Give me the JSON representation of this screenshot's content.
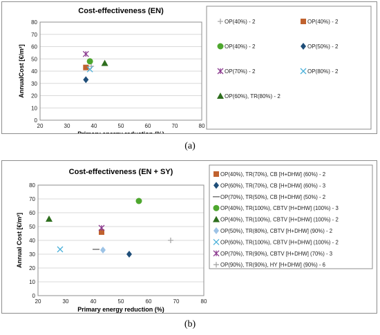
{
  "captions": {
    "a": "(a)",
    "b": "(b)"
  },
  "colors": {
    "orange": "#c0504d",
    "brown": "#c0622f",
    "green": "#4ea72e",
    "dark_green": "#2e6e1e",
    "navy": "#1f4e79",
    "purple": "#8b3a8f",
    "cyan": "#4ab0d9",
    "grey": "#a6a6a6",
    "light_blue": "#9dc3e6"
  },
  "chart_data": [
    {
      "type": "scatter",
      "title": "Cost-effectiveness (EN)",
      "xlabel": "Primary energy reduction (%)",
      "ylabel": "AnnualCost [€/m²]",
      "xlim": [
        20,
        80
      ],
      "ylim": [
        0,
        80
      ],
      "xticks": [
        20,
        30,
        40,
        50,
        60,
        70,
        80
      ],
      "yticks": [
        0,
        10,
        20,
        30,
        40,
        50,
        60,
        70,
        80
      ],
      "grid": "horizontal",
      "legend_position": "right",
      "series": [
        {
          "name": "OP(40%) - 2",
          "marker": "plus",
          "color": "#a6a6a6",
          "points": [
            [
              39,
              44
            ]
          ]
        },
        {
          "name": "OP(40%) - 2",
          "marker": "square",
          "color": "#c0622f",
          "points": [
            [
              37,
              43
            ]
          ]
        },
        {
          "name": "OP(40%) - 2",
          "marker": "circle",
          "color": "#4ea72e",
          "points": [
            [
              38.5,
              48
            ]
          ]
        },
        {
          "name": "OP(50%) - 2",
          "marker": "diamond",
          "color": "#1f4e79",
          "points": [
            [
              37,
              33
            ]
          ]
        },
        {
          "name": "OP(70%) - 2",
          "marker": "star",
          "color": "#8b3a8f",
          "points": [
            [
              37,
              54
            ]
          ]
        },
        {
          "name": "OP(80%) - 2",
          "marker": "x",
          "color": "#4ab0d9",
          "points": [
            [
              38.5,
              41.5
            ]
          ]
        },
        {
          "name": "OP(60%), TR(80%) - 2",
          "marker": "triangle",
          "color": "#2e6e1e",
          "points": [
            [
              44,
              46.5
            ]
          ]
        }
      ]
    },
    {
      "type": "scatter",
      "title": "Cost-effectiveness  (EN + SY)",
      "xlabel": "Primary energy reduction (%)",
      "ylabel": "Annual Cost [€/m²]",
      "xlim": [
        20,
        80
      ],
      "ylim": [
        0,
        80
      ],
      "xticks": [
        20,
        30,
        40,
        50,
        60,
        70,
        80
      ],
      "yticks": [
        0,
        10,
        20,
        30,
        40,
        50,
        60,
        70,
        80
      ],
      "grid": "horizontal",
      "legend_position": "right",
      "series": [
        {
          "name": "OP(40%), TR(70%), CB [H+DHW] (60%) - 2",
          "marker": "square",
          "color": "#c0622f",
          "points": [
            [
              43,
              46
            ]
          ]
        },
        {
          "name": "OP(60%), TR(70%), CB [H+DHW] (60%) - 3",
          "marker": "diamond",
          "color": "#1f4e79",
          "points": [
            [
              53,
              30
            ]
          ]
        },
        {
          "name": "OP(70%), TR(50%), CB [H+DHW] (50%) - 2",
          "marker": "dash",
          "color": "#7f7f7f",
          "points": [
            [
              41,
              33.5
            ]
          ]
        },
        {
          "name": "OP(40%), TR(100%), CBTV [H+DHW] (100%) - 3",
          "marker": "circle",
          "color": "#4ea72e",
          "points": [
            [
              56.5,
              68.5
            ]
          ]
        },
        {
          "name": "OP(40%), TR(100%), CBTV [H+DHW] (100%) - 2",
          "marker": "triangle",
          "color": "#2e6e1e",
          "points": [
            [
              24,
              55.5
            ]
          ]
        },
        {
          "name": "OP(50%), TR(80%), CBTV [H+DHW] (90%) - 2",
          "marker": "diamond",
          "color": "#9dc3e6",
          "points": [
            [
              43.5,
              33
            ]
          ]
        },
        {
          "name": "OP(60%), TR(100%), CBTV [H+DHW] (100%) - 2",
          "marker": "x",
          "color": "#4ab0d9",
          "points": [
            [
              28,
              33.5
            ]
          ]
        },
        {
          "name": "OP(70%), TR(90%), CBTV [H+DHW] (70%) - 3",
          "marker": "star",
          "color": "#8b3a8f",
          "points": [
            [
              43,
              49
            ]
          ]
        },
        {
          "name": "OP(90%), TR(90%), HY [H+DHW] (90%) - 6",
          "marker": "plus",
          "color": "#a6a6a6",
          "points": [
            [
              68,
              40
            ]
          ]
        }
      ]
    }
  ]
}
